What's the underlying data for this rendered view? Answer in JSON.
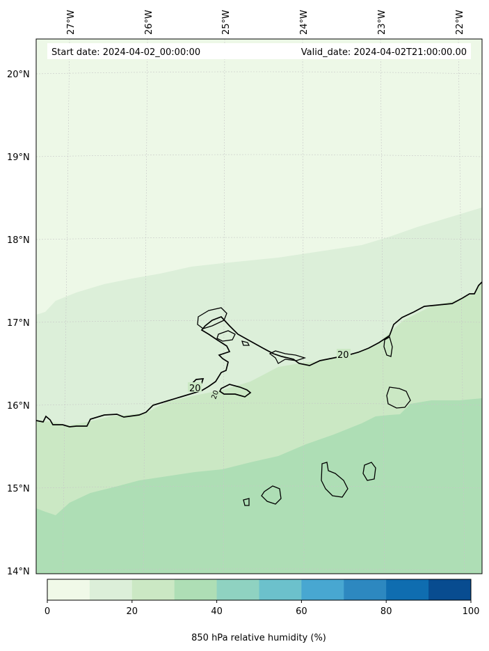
{
  "header": {
    "start_date": "Start date: 2024-04-02_00:00:00",
    "valid_date": "Valid_date: 2024-04-02T21:00:00.00"
  },
  "axes": {
    "lon_labels": [
      "27°W",
      "26°W",
      "25°W",
      "24°W",
      "23°W",
      "22°W"
    ],
    "lat_labels": [
      "20°N",
      "19°N",
      "18°N",
      "17°N",
      "16°N",
      "15°N",
      "14°N"
    ]
  },
  "contours": {
    "label_value": "20",
    "labels": [
      "20",
      "20",
      "20"
    ]
  },
  "colorbar": {
    "title": "850 hPa relative humidity (%)",
    "tick_labels": [
      "0",
      "20",
      "40",
      "60",
      "80",
      "100"
    ],
    "levels": [
      0,
      10,
      20,
      30,
      40,
      50,
      60,
      70,
      80,
      90,
      100
    ],
    "colors": [
      "#f0f9e8",
      "#dcefd9",
      "#cbe8c4",
      "#aedeb5",
      "#8fd2c1",
      "#6cc1cc",
      "#48a7d1",
      "#2d88c0",
      "#0f6db0",
      "#084c90"
    ]
  },
  "field_colors": {
    "band_0_10": "#edf8e7",
    "band_10_20": "#dcefd9",
    "band_20_30": "#cbe8c4",
    "band_30_40": "#aedeb5"
  }
}
